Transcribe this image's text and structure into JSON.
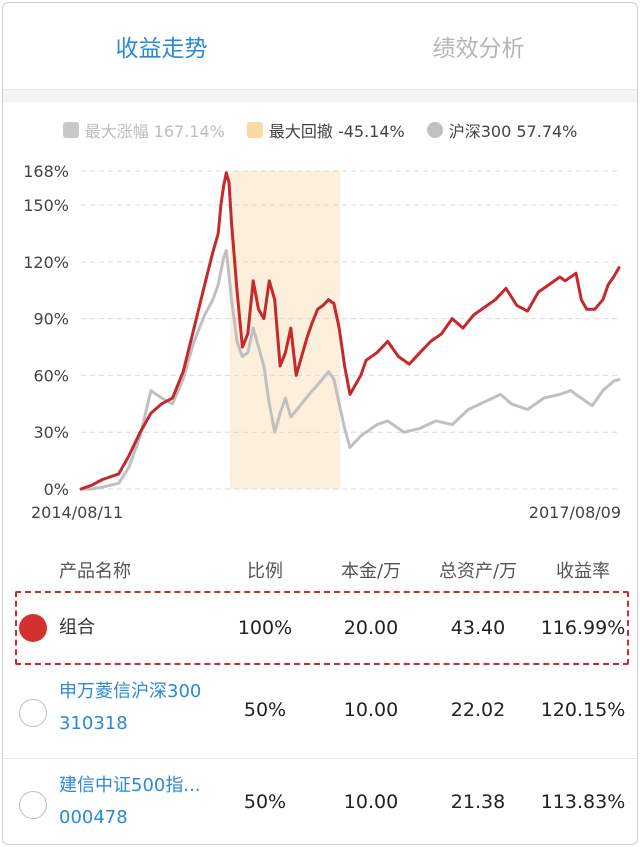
{
  "tabs": [
    {
      "label": "收益走势",
      "active": true
    },
    {
      "label": "绩效分析",
      "active": false
    }
  ],
  "legend": [
    {
      "label": "最大涨幅 167.14%",
      "color": "#c8c8c8",
      "text_color": "#bdbdbd",
      "shape": "square"
    },
    {
      "label": "最大回撤 -45.14%",
      "color": "#fbd9a4",
      "text_color": "#444444",
      "shape": "square"
    },
    {
      "label": "沪深300 57.74%",
      "color": "#c0c0c0",
      "text_color": "#444444",
      "shape": "circle"
    }
  ],
  "chart_data": {
    "type": "line",
    "x_start_label": "2014/08/11",
    "x_end_label": "2017/08/09",
    "y_ticks": [
      "0%",
      "30%",
      "60%",
      "90%",
      "120%",
      "150%",
      "168%"
    ],
    "y_tick_values": [
      0,
      30,
      60,
      90,
      120,
      150,
      168
    ],
    "ylim": [
      0,
      168
    ],
    "grid": true,
    "drawdown_band": {
      "start_fraction": 0.277,
      "end_fraction": 0.482,
      "color": "#fcefdc"
    },
    "series": [
      {
        "color": "#c6282b",
        "points": [
          [
            0,
            0
          ],
          [
            0.02,
            2
          ],
          [
            0.04,
            5
          ],
          [
            0.07,
            8
          ],
          [
            0.09,
            18
          ],
          [
            0.11,
            30
          ],
          [
            0.13,
            40
          ],
          [
            0.15,
            45
          ],
          [
            0.17,
            48
          ],
          [
            0.19,
            62
          ],
          [
            0.21,
            85
          ],
          [
            0.23,
            108
          ],
          [
            0.245,
            125
          ],
          [
            0.255,
            135
          ],
          [
            0.26,
            150
          ],
          [
            0.265,
            160
          ],
          [
            0.27,
            167
          ],
          [
            0.275,
            162
          ],
          [
            0.28,
            140
          ],
          [
            0.29,
            105
          ],
          [
            0.3,
            75
          ],
          [
            0.31,
            82
          ],
          [
            0.32,
            110
          ],
          [
            0.33,
            95
          ],
          [
            0.34,
            90
          ],
          [
            0.35,
            110
          ],
          [
            0.36,
            100
          ],
          [
            0.37,
            65
          ],
          [
            0.38,
            72
          ],
          [
            0.39,
            85
          ],
          [
            0.4,
            60
          ],
          [
            0.42,
            80
          ],
          [
            0.43,
            88
          ],
          [
            0.44,
            95
          ],
          [
            0.45,
            97
          ],
          [
            0.46,
            100
          ],
          [
            0.47,
            98
          ],
          [
            0.48,
            85
          ],
          [
            0.49,
            65
          ],
          [
            0.5,
            50
          ],
          [
            0.52,
            60
          ],
          [
            0.53,
            68
          ],
          [
            0.55,
            72
          ],
          [
            0.57,
            78
          ],
          [
            0.59,
            70
          ],
          [
            0.61,
            66
          ],
          [
            0.63,
            72
          ],
          [
            0.65,
            78
          ],
          [
            0.67,
            82
          ],
          [
            0.69,
            90
          ],
          [
            0.71,
            85
          ],
          [
            0.73,
            92
          ],
          [
            0.75,
            96
          ],
          [
            0.77,
            100
          ],
          [
            0.79,
            106
          ],
          [
            0.81,
            97
          ],
          [
            0.83,
            94
          ],
          [
            0.85,
            104
          ],
          [
            0.87,
            108
          ],
          [
            0.89,
            112
          ],
          [
            0.9,
            110
          ],
          [
            0.92,
            114
          ],
          [
            0.93,
            100
          ],
          [
            0.94,
            95
          ],
          [
            0.955,
            95
          ],
          [
            0.97,
            100
          ],
          [
            0.98,
            108
          ],
          [
            0.99,
            112
          ],
          [
            1.0,
            116.99
          ]
        ]
      },
      {
        "name": "沪深300",
        "color": "#c0c0c0",
        "points": [
          [
            0,
            0
          ],
          [
            0.02,
            0
          ],
          [
            0.04,
            1
          ],
          [
            0.07,
            3
          ],
          [
            0.09,
            12
          ],
          [
            0.11,
            28
          ],
          [
            0.13,
            52
          ],
          [
            0.15,
            48
          ],
          [
            0.17,
            45
          ],
          [
            0.19,
            58
          ],
          [
            0.21,
            78
          ],
          [
            0.23,
            92
          ],
          [
            0.245,
            100
          ],
          [
            0.255,
            108
          ],
          [
            0.265,
            122
          ],
          [
            0.27,
            126
          ],
          [
            0.28,
            100
          ],
          [
            0.29,
            78
          ],
          [
            0.3,
            70
          ],
          [
            0.31,
            72
          ],
          [
            0.32,
            85
          ],
          [
            0.33,
            75
          ],
          [
            0.34,
            65
          ],
          [
            0.35,
            45
          ],
          [
            0.36,
            30
          ],
          [
            0.37,
            40
          ],
          [
            0.38,
            48
          ],
          [
            0.39,
            38
          ],
          [
            0.41,
            45
          ],
          [
            0.43,
            52
          ],
          [
            0.44,
            55
          ],
          [
            0.46,
            62
          ],
          [
            0.47,
            58
          ],
          [
            0.48,
            45
          ],
          [
            0.49,
            32
          ],
          [
            0.5,
            22
          ],
          [
            0.52,
            28
          ],
          [
            0.55,
            34
          ],
          [
            0.57,
            36
          ],
          [
            0.6,
            30
          ],
          [
            0.63,
            32
          ],
          [
            0.66,
            36
          ],
          [
            0.69,
            34
          ],
          [
            0.72,
            42
          ],
          [
            0.75,
            46
          ],
          [
            0.78,
            50
          ],
          [
            0.8,
            45
          ],
          [
            0.83,
            42
          ],
          [
            0.86,
            48
          ],
          [
            0.89,
            50
          ],
          [
            0.91,
            52
          ],
          [
            0.93,
            48
          ],
          [
            0.95,
            44
          ],
          [
            0.97,
            52
          ],
          [
            0.99,
            57
          ],
          [
            1.0,
            57.74
          ]
        ]
      }
    ]
  },
  "table": {
    "headers": [
      "产品名称",
      "比例",
      "本金/万",
      "总资产/万",
      "收益率"
    ],
    "rows": [
      {
        "name_line1": "组合",
        "name_line2": "",
        "ratio": "100%",
        "principal": "20.00",
        "assets": "43.40",
        "return": "116.99%",
        "selected": true,
        "link": false
      },
      {
        "name_line1": "申万菱信沪深300",
        "name_line2": "310318",
        "ratio": "50%",
        "principal": "10.00",
        "assets": "22.02",
        "return": "120.15%",
        "selected": false,
        "link": true
      },
      {
        "name_line1": "建信中证500指...",
        "name_line2": "000478",
        "ratio": "50%",
        "principal": "10.00",
        "assets": "21.38",
        "return": "113.83%",
        "selected": false,
        "link": true
      }
    ]
  }
}
